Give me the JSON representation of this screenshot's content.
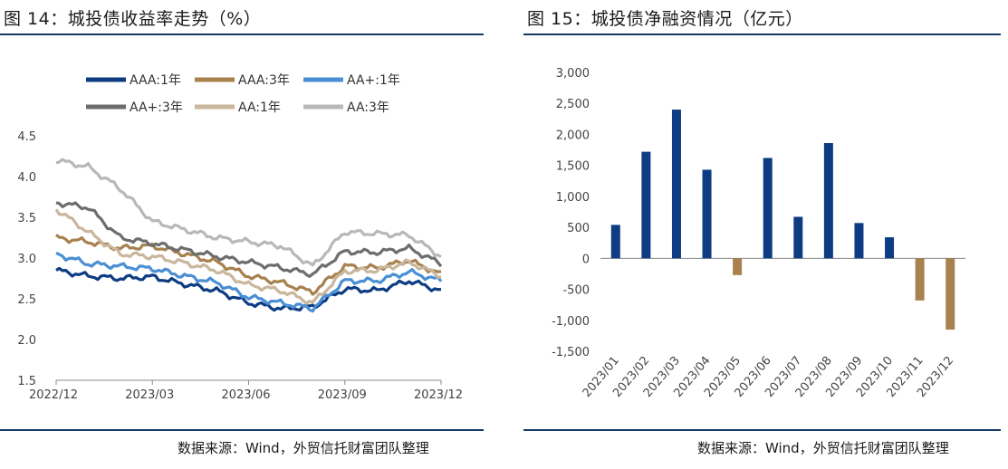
{
  "panels": {
    "left": {
      "title": "图 14：城投债收益率走势（%）",
      "source": "数据来源：Wind，外贸信托财富团队整理"
    },
    "right": {
      "title": "图 15：城投债净融资情况（亿元）",
      "source": "数据来源：Wind，外贸信托财富团队整理"
    }
  },
  "chart_data": [
    {
      "type": "line",
      "title": "",
      "xlabel": "",
      "ylabel": "",
      "ylim": [
        1.5,
        4.5
      ],
      "yticks": [
        "1.5",
        "2.0",
        "2.5",
        "3.0",
        "3.5",
        "4.0",
        "4.5"
      ],
      "x_tick_labels": [
        "2022/12",
        "2023/03",
        "2023/06",
        "2023/09",
        "2023/12"
      ],
      "grid": false,
      "legend_position": "top",
      "x": [
        "2022/12",
        "2023/01",
        "2023/02",
        "2023/03",
        "2023/04",
        "2023/05",
        "2023/06",
        "2023/07",
        "2023/08",
        "2023/09",
        "2023/10",
        "2023/11",
        "2023/12"
      ],
      "series": [
        {
          "name": "AAA:1年",
          "color": "#0d3c83",
          "width": 4,
          "values": [
            2.85,
            2.78,
            2.75,
            2.77,
            2.68,
            2.6,
            2.45,
            2.38,
            2.4,
            2.62,
            2.6,
            2.72,
            2.6
          ]
        },
        {
          "name": "AAA:3年",
          "color": "#a8814f",
          "width": 4,
          "values": [
            3.25,
            3.2,
            3.12,
            3.15,
            3.05,
            2.95,
            2.78,
            2.7,
            2.58,
            2.9,
            2.88,
            2.97,
            2.8
          ]
        },
        {
          "name": "AA+:1年",
          "color": "#4a8fd4",
          "width": 4,
          "values": [
            3.05,
            2.93,
            2.9,
            2.87,
            2.78,
            2.7,
            2.52,
            2.45,
            2.38,
            2.72,
            2.72,
            2.83,
            2.72
          ]
        },
        {
          "name": "AA+:3年",
          "color": "#6d6d6d",
          "width": 4,
          "values": [
            3.68,
            3.62,
            3.25,
            3.18,
            3.1,
            3.02,
            2.95,
            2.88,
            2.8,
            3.08,
            3.07,
            3.12,
            2.93
          ]
        },
        {
          "name": "AA:1年",
          "color": "#c9b69c",
          "width": 4,
          "values": [
            3.6,
            3.32,
            3.05,
            3.02,
            2.94,
            2.85,
            2.67,
            2.6,
            2.45,
            2.84,
            2.85,
            2.95,
            2.78
          ]
        },
        {
          "name": "AA:3年",
          "color": "#b8b8b8",
          "width": 4,
          "values": [
            4.2,
            4.12,
            3.85,
            3.45,
            3.35,
            3.25,
            3.2,
            3.15,
            2.9,
            3.32,
            3.3,
            3.28,
            3.02
          ]
        }
      ]
    },
    {
      "type": "bar",
      "title": "",
      "xlabel": "",
      "ylabel": "",
      "ylim": [
        -1500,
        3000
      ],
      "yticks": [
        "3,000",
        "2,500",
        "2,000",
        "1,500",
        "1,000",
        "500",
        "0",
        "-500",
        "-1,000",
        "-1,500"
      ],
      "grid": false,
      "categories": [
        "2023/01",
        "2023/02",
        "2023/03",
        "2023/04",
        "2023/05",
        "2023/06",
        "2023/07",
        "2023/08",
        "2023/09",
        "2023/10",
        "2023/11",
        "2023/12"
      ],
      "values": [
        540,
        1720,
        2400,
        1430,
        -270,
        1620,
        670,
        1860,
        570,
        340,
        -680,
        -1150
      ],
      "positive_color": "#0d3c83",
      "negative_color": "#a8814f"
    }
  ]
}
